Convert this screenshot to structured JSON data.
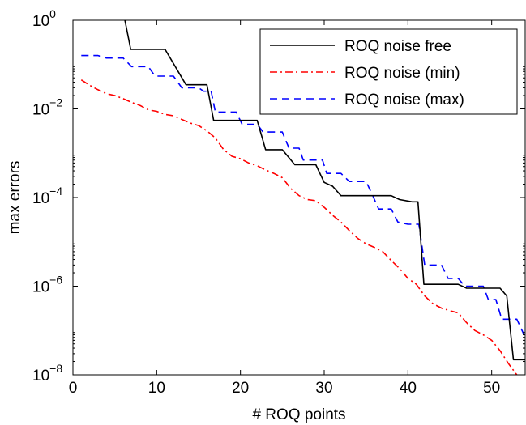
{
  "chart_data": {
    "type": "line",
    "xlabel": "# ROQ points",
    "ylabel": "max errors",
    "xlim": [
      0,
      54
    ],
    "ylim": [
      1e-08,
      1
    ],
    "yscale": "log",
    "grid": false,
    "legend_position": "top-right",
    "xticks": [
      0,
      10,
      20,
      30,
      40,
      50
    ],
    "yticks": [
      {
        "value": 1e-08,
        "base": "10",
        "exp": "−8"
      },
      {
        "value": 1e-06,
        "base": "10",
        "exp": "−6"
      },
      {
        "value": 0.0001,
        "base": "10",
        "exp": "−4"
      },
      {
        "value": 0.01,
        "base": "10",
        "exp": "−2"
      },
      {
        "value": 1,
        "base": "10",
        "exp": "0"
      }
    ],
    "series": [
      {
        "name": "ROQ noise free",
        "color": "#000000",
        "style": "solid",
        "step": true,
        "points": [
          [
            6.2,
            1.0
          ],
          [
            6.9,
            0.22
          ],
          [
            11.0,
            0.22
          ],
          [
            13.5,
            0.035
          ],
          [
            16.0,
            0.035
          ],
          [
            16.8,
            0.0055
          ],
          [
            22.0,
            0.0055
          ],
          [
            23.0,
            0.0012
          ],
          [
            25.0,
            0.0012
          ],
          [
            26.5,
            0.00055
          ],
          [
            29.0,
            0.00055
          ],
          [
            30.0,
            0.00022
          ],
          [
            31.0,
            0.00018
          ],
          [
            32.0,
            0.00011
          ],
          [
            38.0,
            0.00011
          ],
          [
            39.0,
            9e-05
          ],
          [
            40.5,
            8e-05
          ],
          [
            41.2,
            8e-05
          ],
          [
            41.9,
            1.1e-06
          ],
          [
            46.0,
            1.1e-06
          ],
          [
            47.0,
            9e-07
          ],
          [
            51.0,
            9e-07
          ],
          [
            51.8,
            6e-07
          ],
          [
            52.6,
            2.2e-08
          ],
          [
            54.0,
            2.2e-08
          ]
        ]
      },
      {
        "name": "ROQ noise (min)",
        "color": "#ff0000",
        "style": "dash-dot",
        "step": false,
        "points": [
          [
            1,
            0.045
          ],
          [
            2,
            0.034
          ],
          [
            3,
            0.027
          ],
          [
            4,
            0.022
          ],
          [
            5,
            0.02
          ],
          [
            6,
            0.017
          ],
          [
            7,
            0.014
          ],
          [
            8,
            0.012
          ],
          [
            9,
            0.0095
          ],
          [
            10,
            0.0088
          ],
          [
            11,
            0.0075
          ],
          [
            12,
            0.007
          ],
          [
            13,
            0.0058
          ],
          [
            14,
            0.0048
          ],
          [
            15,
            0.0042
          ],
          [
            16,
            0.0032
          ],
          [
            17,
            0.0022
          ],
          [
            18,
            0.0012
          ],
          [
            19,
            0.00085
          ],
          [
            20,
            0.00075
          ],
          [
            21,
            0.0006
          ],
          [
            22,
            0.00052
          ],
          [
            23,
            0.00042
          ],
          [
            24,
            0.00035
          ],
          [
            25,
            0.00028
          ],
          [
            26,
            0.00016
          ],
          [
            27,
            0.00011
          ],
          [
            28,
            9e-05
          ],
          [
            29,
            8.5e-05
          ],
          [
            30,
            6e-05
          ],
          [
            31,
            4e-05
          ],
          [
            32,
            2.8e-05
          ],
          [
            33,
            1.8e-05
          ],
          [
            34,
            1.2e-05
          ],
          [
            35,
            9e-06
          ],
          [
            36,
            7.5e-06
          ],
          [
            37,
            6e-06
          ],
          [
            38,
            3.8e-06
          ],
          [
            39,
            2.5e-06
          ],
          [
            40,
            1.5e-06
          ],
          [
            41,
            1.1e-06
          ],
          [
            42,
            6e-07
          ],
          [
            43,
            4e-07
          ],
          [
            44,
            3.2e-07
          ],
          [
            45,
            2.8e-07
          ],
          [
            46,
            2.5e-07
          ],
          [
            47,
            1.5e-07
          ],
          [
            48,
            1e-07
          ],
          [
            49,
            8e-08
          ],
          [
            50,
            6e-08
          ],
          [
            51,
            3.5e-08
          ],
          [
            52,
            1.8e-08
          ],
          [
            53,
            1e-08
          ]
        ]
      },
      {
        "name": "ROQ noise (max)",
        "color": "#0000ff",
        "style": "dashed",
        "step": true,
        "points": [
          [
            1,
            0.16
          ],
          [
            3,
            0.16
          ],
          [
            4,
            0.14
          ],
          [
            6,
            0.14
          ],
          [
            7.0,
            0.09
          ],
          [
            9,
            0.09
          ],
          [
            9.8,
            0.055
          ],
          [
            12,
            0.055
          ],
          [
            13,
            0.03
          ],
          [
            15,
            0.03
          ],
          [
            15.6,
            0.025
          ],
          [
            16.5,
            0.025
          ],
          [
            17.0,
            0.0085
          ],
          [
            19.5,
            0.0085
          ],
          [
            20.2,
            0.0045
          ],
          [
            22,
            0.0045
          ],
          [
            22.7,
            0.003
          ],
          [
            25,
            0.003
          ],
          [
            25.8,
            0.0013
          ],
          [
            27,
            0.0013
          ],
          [
            27.5,
            0.0007
          ],
          [
            29.8,
            0.0007
          ],
          [
            30.3,
            0.00035
          ],
          [
            32,
            0.00035
          ],
          [
            33,
            0.00023
          ],
          [
            35,
            0.00023
          ],
          [
            35.8,
            0.00011
          ],
          [
            36.5,
            5.5e-05
          ],
          [
            38,
            5.5e-05
          ],
          [
            38.8,
            2.8e-05
          ],
          [
            40,
            2.5e-05
          ],
          [
            41.3,
            2.5e-05
          ],
          [
            42,
            3e-06
          ],
          [
            44,
            3e-06
          ],
          [
            44.8,
            1.5e-06
          ],
          [
            46,
            1.5e-06
          ],
          [
            46.8,
            1e-06
          ],
          [
            49,
            1e-06
          ],
          [
            49.6,
            5e-07
          ],
          [
            50.5,
            5e-07
          ],
          [
            51.2,
            1.8e-07
          ],
          [
            53,
            1.8e-07
          ],
          [
            54,
            7e-08
          ]
        ]
      }
    ]
  }
}
